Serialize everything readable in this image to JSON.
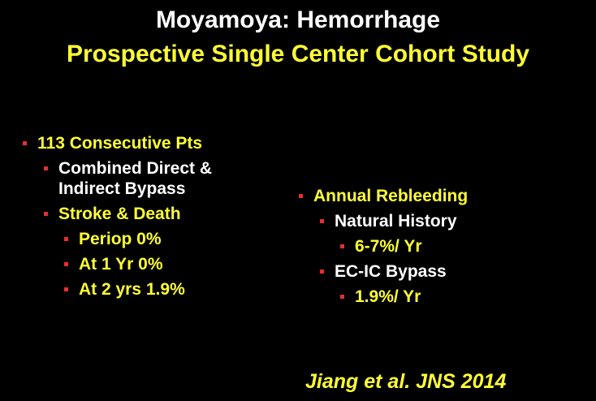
{
  "title": "Moyamoya: Hemorrhage",
  "subtitle": "Prospective Single Center Cohort Study",
  "left": [
    {
      "text": "113 Consecutive Pts",
      "level": 1,
      "color": "#ffff33"
    },
    {
      "text": "Combined Direct & Indirect Bypass",
      "level": 2,
      "color": "#ffffff"
    },
    {
      "text": "Stroke & Death",
      "level": 2,
      "color": "#ffff33"
    },
    {
      "text": "Periop 0%",
      "level": 3,
      "color": "#ffff33"
    },
    {
      "text": "At 1 Yr 0%",
      "level": 3,
      "color": "#ffff33"
    },
    {
      "text": "At 2 yrs 1.9%",
      "level": 3,
      "color": "#ffff33"
    }
  ],
  "right": [
    {
      "text": "Annual Rebleeding",
      "level": 1,
      "color": "#ffff33"
    },
    {
      "text": "Natural History",
      "level": 2,
      "color": "#ffffff"
    },
    {
      "text": "6-7%/ Yr",
      "level": 3,
      "color": "#ffff33"
    },
    {
      "text": "EC-IC Bypass",
      "level": 2,
      "color": "#ffffff"
    },
    {
      "text": "1.9%/ Yr",
      "level": 3,
      "color": "#ffff33"
    }
  ],
  "citation": "Jiang et al. JNS 2014"
}
